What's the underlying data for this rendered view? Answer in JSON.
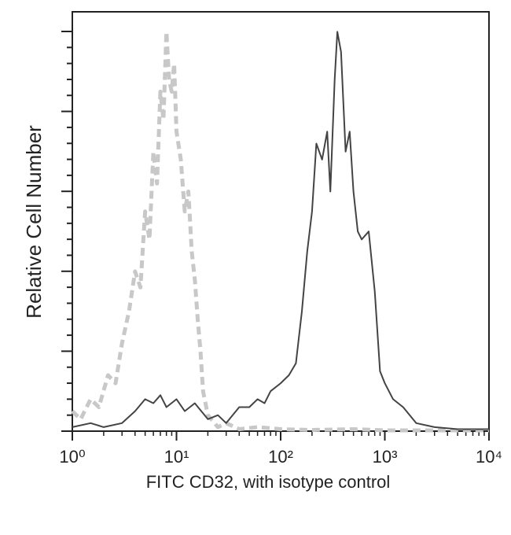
{
  "chart_data": {
    "type": "line",
    "xlabel": "FITC CD32, with isotype control",
    "ylabel": "Relative Cell Number",
    "xscale": "log",
    "xlim": [
      1,
      10000
    ],
    "ylim": [
      0,
      105
    ],
    "xticks": [
      {
        "value": 1,
        "label": "10⁰"
      },
      {
        "value": 10,
        "label": "10¹"
      },
      {
        "value": 100,
        "label": "10²"
      },
      {
        "value": 1000,
        "label": "10³"
      },
      {
        "value": 10000,
        "label": "10⁴"
      }
    ],
    "series": [
      {
        "color": "#c8c8c8",
        "dash": true,
        "x": [
          1,
          1.2,
          1.5,
          1.8,
          2.2,
          2.6,
          3,
          3.5,
          4,
          4.5,
          5,
          5.5,
          6,
          6.5,
          7,
          7.5,
          8,
          8.5,
          9,
          9.5,
          10,
          11,
          12,
          13,
          14,
          15,
          16,
          17,
          18,
          20,
          25,
          30,
          40,
          60,
          100,
          200,
          500,
          1000,
          10000
        ],
        "values": [
          5,
          3,
          8,
          6,
          14,
          12,
          22,
          30,
          40,
          36,
          55,
          48,
          70,
          62,
          85,
          78,
          100,
          88,
          85,
          92,
          75,
          68,
          55,
          60,
          45,
          38,
          28,
          20,
          10,
          4,
          1,
          2,
          0.5,
          1,
          0.5,
          0.3,
          0.5,
          0.2,
          0.2
        ]
      },
      {
        "color": "#444444",
        "dash": false,
        "x": [
          1,
          1.5,
          2,
          3,
          4,
          5,
          6,
          7,
          8,
          10,
          12,
          15,
          20,
          25,
          30,
          40,
          50,
          60,
          70,
          80,
          100,
          120,
          140,
          160,
          180,
          200,
          220,
          250,
          280,
          300,
          330,
          350,
          380,
          420,
          460,
          500,
          550,
          600,
          700,
          800,
          900,
          1000,
          1200,
          1500,
          2000,
          3000,
          5000,
          10000
        ],
        "values": [
          1,
          2,
          1,
          2,
          5,
          8,
          7,
          9,
          6,
          8,
          5,
          7,
          3,
          4,
          2,
          6,
          6,
          8,
          7,
          10,
          12,
          14,
          17,
          30,
          45,
          55,
          72,
          68,
          75,
          60,
          88,
          100,
          95,
          70,
          75,
          60,
          50,
          48,
          50,
          35,
          15,
          12,
          8,
          6,
          2,
          1,
          0.5,
          0.5
        ]
      }
    ]
  }
}
